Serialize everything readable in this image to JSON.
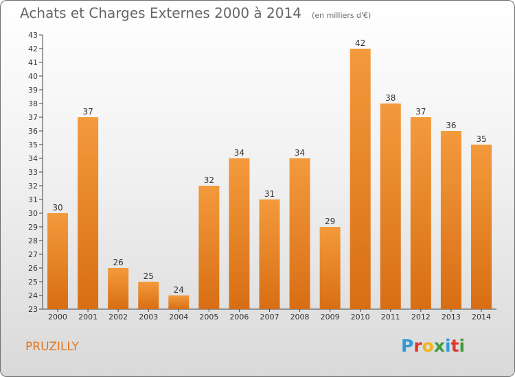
{
  "title": "Achats et Charges Externes 2000 à 2014",
  "unit": "(en milliers d'€)",
  "place": "PRUZILLY",
  "logo": {
    "letters": [
      "P",
      "r",
      "o",
      "x",
      "i",
      "t",
      "i"
    ],
    "colors": [
      "#2f9ad8",
      "#e2362d",
      "#f3b41b",
      "#3f9d3f",
      "#2f9ad8",
      "#e2362d",
      "#3f9d3f"
    ]
  },
  "colors": {
    "bar": "#f39a3c",
    "bar_dark": "#d86e14",
    "place": "#e0761e"
  },
  "chart_data": {
    "type": "bar",
    "categories": [
      "2000",
      "2001",
      "2002",
      "2003",
      "2004",
      "2005",
      "2006",
      "2007",
      "2008",
      "2009",
      "2010",
      "2011",
      "2012",
      "2013",
      "2014"
    ],
    "values": [
      30,
      37,
      26,
      25,
      24,
      32,
      34,
      31,
      34,
      29,
      42,
      38,
      37,
      36,
      35
    ],
    "ylim": [
      23,
      43
    ],
    "yticks": [
      23,
      24,
      25,
      26,
      27,
      28,
      29,
      30,
      31,
      32,
      33,
      34,
      35,
      36,
      37,
      38,
      39,
      40,
      41,
      42,
      43
    ],
    "xlabel": "",
    "ylabel": "",
    "grid": false,
    "data_labels": true
  }
}
